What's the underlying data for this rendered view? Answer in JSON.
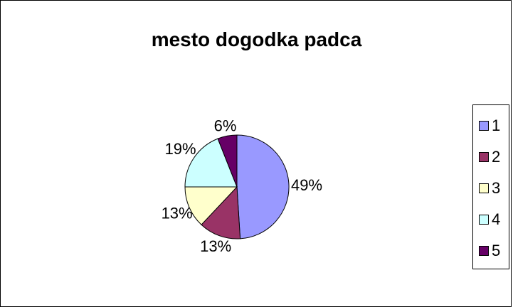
{
  "chart_data": {
    "type": "pie",
    "title": "mesto dogodka padca",
    "categories": [
      "1",
      "2",
      "3",
      "4",
      "5"
    ],
    "values": [
      49,
      13,
      13,
      19,
      6
    ],
    "labels": [
      "49%",
      "13%",
      "13%",
      "19%",
      "6%"
    ],
    "colors": [
      "#9999FF",
      "#993366",
      "#FFFFCC",
      "#CCFFFF",
      "#660066"
    ],
    "legend_position": "right"
  }
}
